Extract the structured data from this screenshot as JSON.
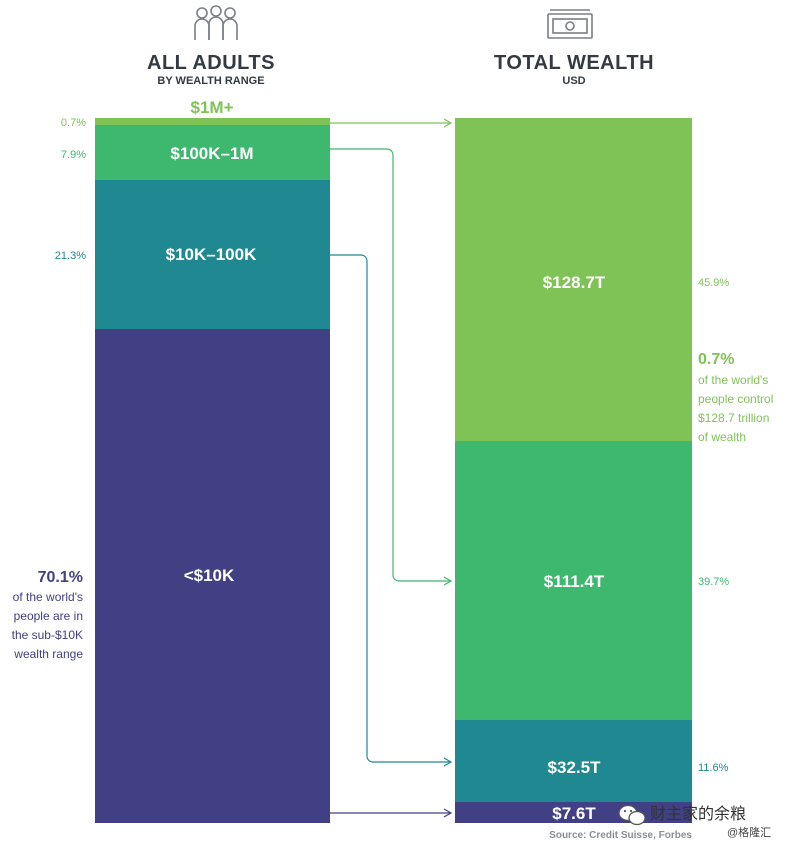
{
  "colors": {
    "m1_plus": "#7fc356",
    "k100_1m": "#3fb86f",
    "k10_100k": "#1f8890",
    "under10k": "#414085",
    "title": "#333a41",
    "source": "#8a8f96"
  },
  "left_header": {
    "title": "ALL ADULTS",
    "subtitle": "BY WEALTH RANGE",
    "icon": "people-group-icon"
  },
  "right_header": {
    "title": "TOTAL WEALTH",
    "subtitle": "USD",
    "icon": "banknote-icon"
  },
  "chart_data": {
    "type": "stacked-bar",
    "scale_note": "two stacked 100% columns linked by arrows",
    "adults": {
      "categories": [
        "$1M+",
        "$100K–1M",
        "$10K–100K",
        "<$10K"
      ],
      "pct": [
        0.7,
        7.9,
        21.3,
        70.1
      ],
      "pct_labels": [
        "0.7%",
        "7.9%",
        "21.3%",
        ""
      ]
    },
    "wealth": {
      "categories": [
        "$1M+",
        "$100K–1M",
        "$10K–100K",
        "<$10K"
      ],
      "values_trillions": [
        128.7,
        111.4,
        32.5,
        7.6
      ],
      "value_labels": [
        "$128.7T",
        "$111.4T",
        "$32.5T",
        "$7.6T"
      ],
      "pct": [
        45.9,
        39.7,
        11.6,
        2.7
      ],
      "pct_labels": [
        "45.9%",
        "39.7%",
        "11.6%",
        ""
      ]
    }
  },
  "annotations": {
    "left": {
      "big": "70.1%",
      "lines": [
        "of the world's",
        "people are in",
        "the sub-$10K",
        "wealth range"
      ]
    },
    "right": {
      "big": "0.7%",
      "lines": [
        "of the world's",
        "people control",
        "$128.7 trillion",
        "of wealth"
      ]
    }
  },
  "source": "Source: Credit Suisse, Forbes",
  "watermark": {
    "main": "财主家的余粮",
    "sub": "@格隆汇",
    "icon": "wechat-icon"
  }
}
